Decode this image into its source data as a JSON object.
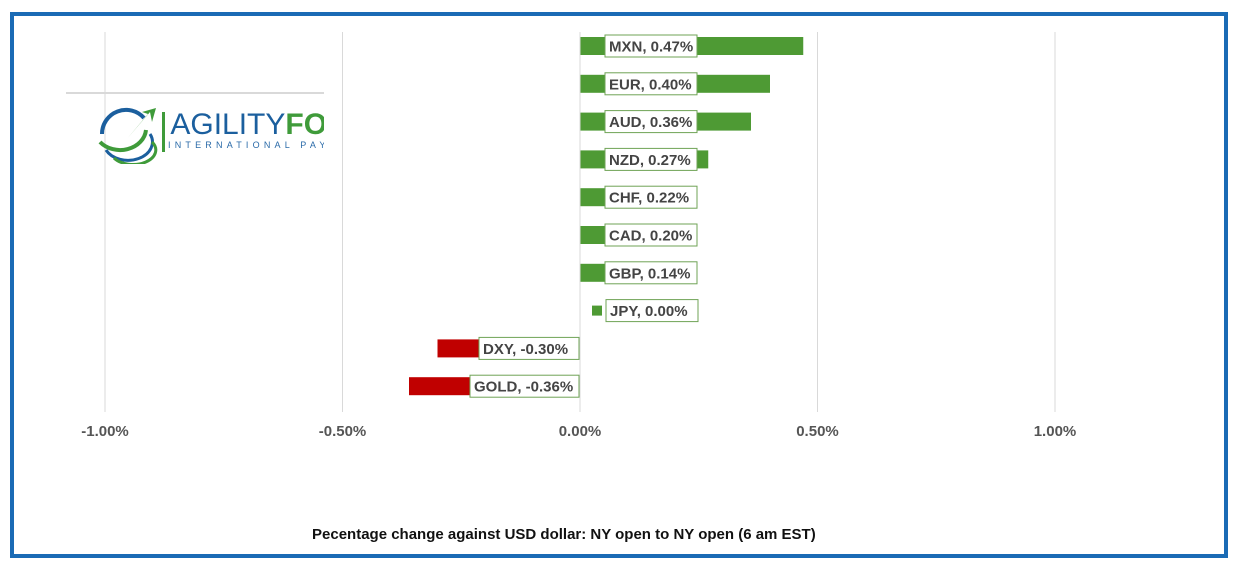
{
  "chart_data": {
    "type": "bar",
    "orientation": "horizontal",
    "categories": [
      "MXN",
      "EUR",
      "AUD",
      "NZD",
      "CHF",
      "CAD",
      "GBP",
      "JPY",
      "DXY",
      "GOLD"
    ],
    "values": [
      0.47,
      0.4,
      0.36,
      0.27,
      0.22,
      0.2,
      0.14,
      0.0,
      -0.3,
      -0.36
    ],
    "data_labels": [
      "MXN, 0.47%",
      "EUR, 0.40%",
      "AUD, 0.36%",
      "NZD, 0.27%",
      "CHF, 0.22%",
      "CAD, 0.20%",
      "GBP, 0.14%",
      "JPY, 0.00%",
      "DXY, -0.30%",
      "GOLD, -0.36%"
    ],
    "xlim": [
      -1.0,
      1.0
    ],
    "x_ticks": [
      -1.0,
      -0.5,
      0.0,
      0.5,
      1.0
    ],
    "x_tick_labels": [
      "-1.00%",
      "-0.50%",
      "0.00%",
      "0.50%",
      "1.00%"
    ],
    "title": "",
    "xlabel": "Pecentage change against USD dollar: NY open to NY open  (6 am EST)",
    "ylabel": "",
    "grid": "vertical",
    "legend": "none",
    "colors": {
      "positive": "#4e9a34",
      "negative": "#c00000",
      "grid": "#d9d9d9",
      "frame": "#1a6bb5"
    }
  },
  "logo": {
    "word_part1": "AGILITY",
    "word_part2": "FORE",
    "subtitle": "INTERNATIONAL PAYMENTS"
  }
}
